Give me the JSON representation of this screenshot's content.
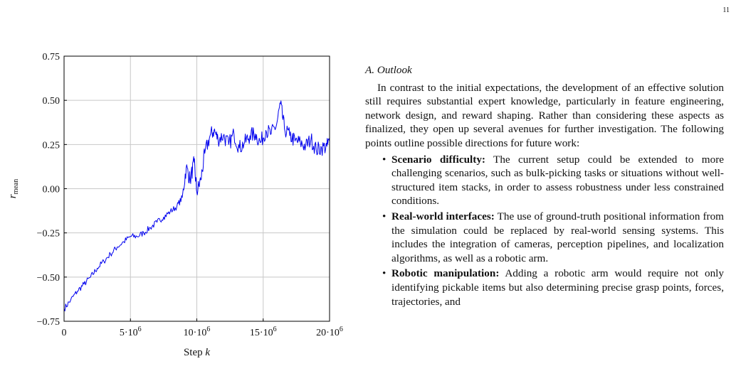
{
  "page_number": "11",
  "section_heading": "A. Outlook",
  "intro_paragraph": "In contrast to the initial expectations, the development of an effective solution still requires substantial expert knowledge, particularly in feature engineering, network design, and reward shaping. Rather than considering these aspects as finalized, they open up several avenues for further investigation. The following points outline possible directions for future work:",
  "outlook_items": [
    {
      "title": "Scenario difficulty:",
      "text": "The current setup could be extended to more challenging scenarios, such as bulk-picking tasks or situations without well-structured item stacks, in order to assess robustness under less constrained conditions."
    },
    {
      "title": "Real-world interfaces:",
      "text": "The use of ground-truth positional information from the simulation could be replaced by real-world sensing systems. This includes the integration of cameras, perception pipelines, and localization algorithms, as well as a robotic arm."
    },
    {
      "title": "Robotic manipulation:",
      "text": "Adding a robotic arm would require not only identifying pickable items but also determining precise grasp points, forces, trajectories, and"
    }
  ],
  "chart_data": {
    "type": "line",
    "xlabel": "Step k",
    "ylabel": "r_mean",
    "xlim": [
      0,
      20000000
    ],
    "ylim": [
      -0.75,
      0.75
    ],
    "x_ticks": [
      "0",
      "5·10^6",
      "10·10^6",
      "15·10^6",
      "20·10^6"
    ],
    "y_ticks": [
      "0.75",
      "0.50",
      "0.25",
      "0.00",
      "−0.25",
      "−0.50",
      "−0.75"
    ],
    "grid": true,
    "line_color": "#0000ee",
    "series": [
      {
        "x": [
          0,
          500000,
          1000000,
          1500000,
          2000000,
          2500000,
          3000000,
          3500000,
          4000000,
          4500000,
          5000000,
          5500000,
          6000000,
          6500000,
          7000000,
          7500000,
          8000000,
          8500000,
          8900000,
          9200000,
          9500000,
          9800000,
          10000000,
          10300000,
          10600000,
          11000000,
          11300000,
          11600000,
          12000000,
          12400000,
          12800000,
          13200000,
          13600000,
          14000000,
          14400000,
          14800000,
          15200000,
          15600000,
          16000000,
          16300000,
          16600000,
          17000000,
          17400000,
          17800000,
          18200000,
          18600000,
          19000000,
          19400000,
          19800000,
          20000000
        ],
        "y": [
          -0.68,
          -0.63,
          -0.58,
          -0.54,
          -0.5,
          -0.45,
          -0.41,
          -0.37,
          -0.33,
          -0.3,
          -0.27,
          -0.27,
          -0.25,
          -0.22,
          -0.19,
          -0.16,
          -0.13,
          -0.1,
          -0.05,
          0.12,
          0.05,
          0.15,
          -0.02,
          0.05,
          0.2,
          0.3,
          0.33,
          0.28,
          0.3,
          0.25,
          0.31,
          0.23,
          0.26,
          0.3,
          0.31,
          0.26,
          0.33,
          0.31,
          0.36,
          0.48,
          0.34,
          0.3,
          0.27,
          0.26,
          0.24,
          0.28,
          0.22,
          0.23,
          0.24,
          0.27
        ]
      }
    ]
  }
}
